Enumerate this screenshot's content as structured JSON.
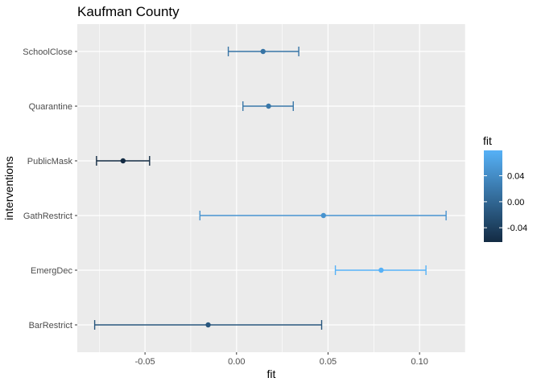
{
  "chart_data": {
    "type": "errorbar",
    "title": "Kaufman County",
    "xlabel": "fit",
    "ylabel": "interventions",
    "xlim": [
      -0.087,
      0.125
    ],
    "x_ticks": [
      -0.05,
      0.0,
      0.05,
      0.1
    ],
    "x_tick_labels": [
      "-0.05",
      "0.00",
      "0.05",
      "0.10"
    ],
    "grid": true,
    "categories": [
      "SchoolClose",
      "Quarantine",
      "PublicMask",
      "GathRestrict",
      "EmergDec",
      "BarRestrict"
    ],
    "points": [
      {
        "name": "SchoolClose",
        "fit": 0.0145,
        "lower": -0.0045,
        "upper": 0.034
      },
      {
        "name": "Quarantine",
        "fit": 0.0175,
        "lower": 0.0035,
        "upper": 0.031
      },
      {
        "name": "PublicMask",
        "fit": -0.062,
        "lower": -0.0765,
        "upper": -0.0475
      },
      {
        "name": "GathRestrict",
        "fit": 0.0475,
        "lower": -0.02,
        "upper": 0.1145
      },
      {
        "name": "EmergDec",
        "fit": 0.079,
        "lower": 0.054,
        "upper": 0.1035
      },
      {
        "name": "BarRestrict",
        "fit": -0.0155,
        "lower": -0.0775,
        "upper": 0.0465
      }
    ],
    "legend": {
      "title": "fit",
      "position": "right",
      "color_low": "#132B43",
      "color_high": "#56B1F7",
      "range": [
        -0.062,
        0.079
      ],
      "ticks": [
        0.04,
        0.0,
        -0.04
      ],
      "tick_labels": [
        "0.04",
        "0.00",
        "-0.04"
      ]
    },
    "panel_background": "#EBEBEB"
  }
}
